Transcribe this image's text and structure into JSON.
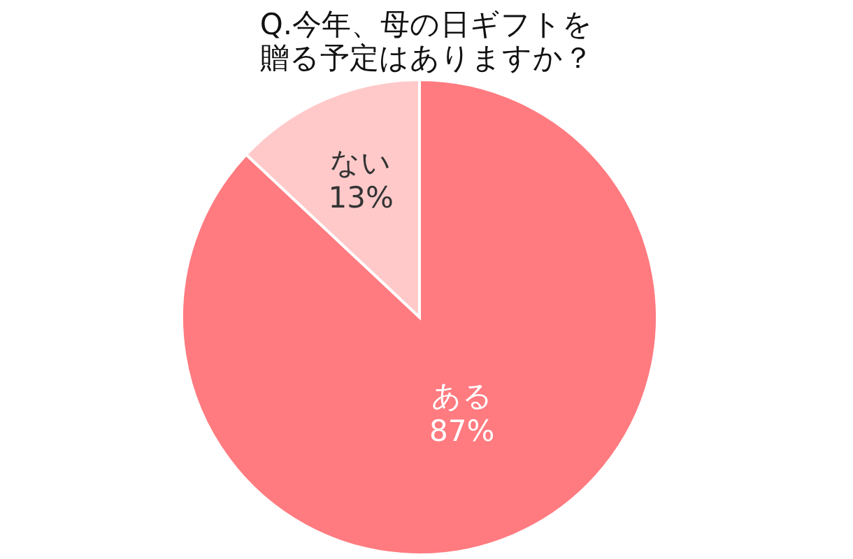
{
  "chart_data": {
    "type": "pie",
    "title": "Q.今年、母の日ギフトを贈る予定はありますか？",
    "categories": [
      "ある",
      "ない"
    ],
    "values": [
      87,
      13
    ],
    "value_labels": [
      "87%",
      "13%"
    ],
    "colors": [
      "#ff7b80",
      "#ffc9c9"
    ],
    "legend": false
  }
}
